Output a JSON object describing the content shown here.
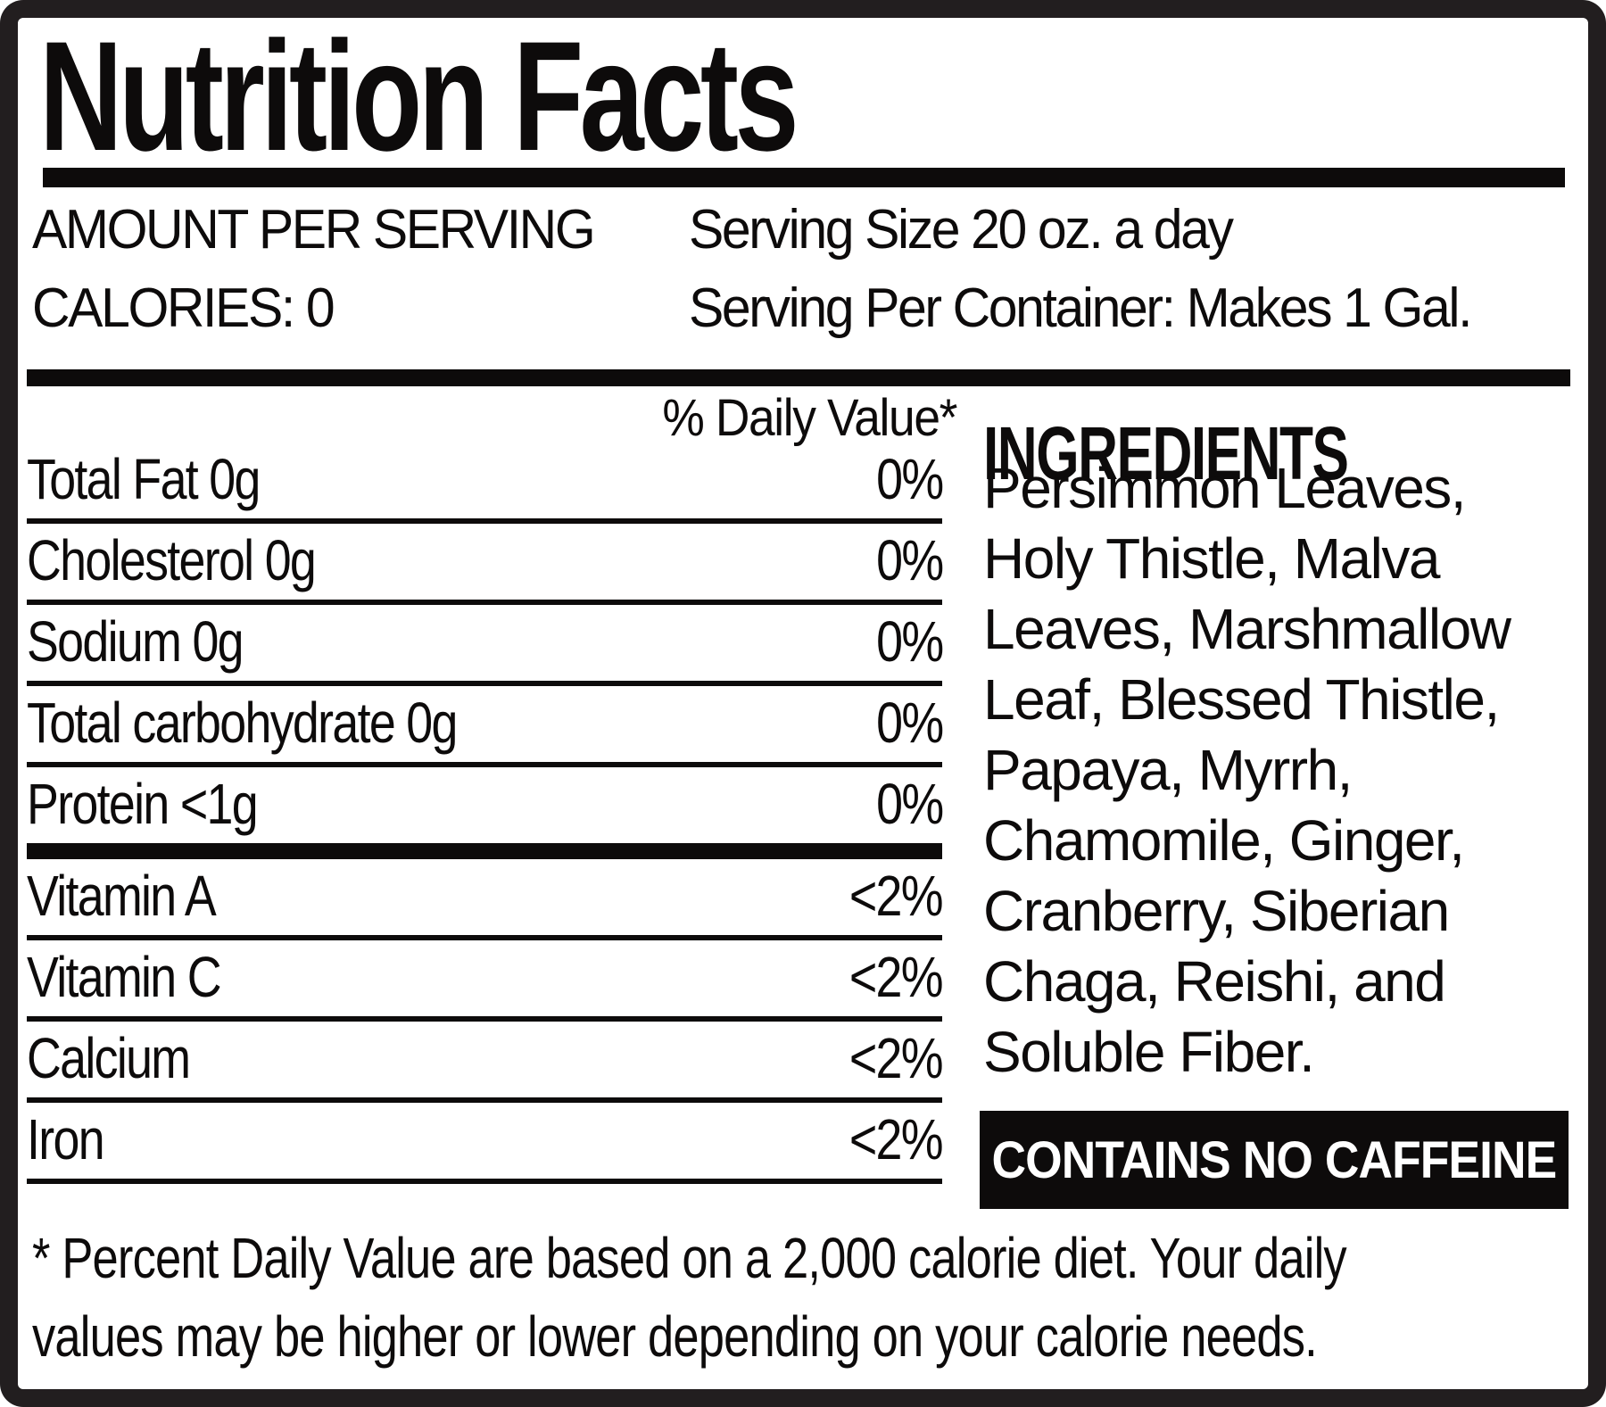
{
  "label": {
    "title": "Nutrition Facts",
    "header": {
      "amount_per_serving": "AMOUNT PER SERVING",
      "calories": "CALORIES: 0",
      "serving_size": "Serving Size 20 oz. a day",
      "servings_per_container": "Serving Per Container: Makes 1 Gal."
    },
    "daily_value_header": "% Daily Value*",
    "nutrients": {
      "macro": [
        {
          "name": "Total Fat 0g",
          "value": "0%"
        },
        {
          "name": "Cholesterol 0g",
          "value": "0%"
        },
        {
          "name": "Sodium 0g",
          "value": "0%"
        },
        {
          "name": "Total carbohydrate 0g",
          "value": "0%"
        },
        {
          "name": "Protein <1g",
          "value": "0%"
        }
      ],
      "vitamins_minerals": [
        {
          "name": "Vitamin A",
          "value": "<2%"
        },
        {
          "name": "Vitamin C",
          "value": "<2%"
        },
        {
          "name": "Calcium",
          "value": "<2%"
        },
        {
          "name": "Iron",
          "value": "<2%"
        }
      ]
    },
    "ingredients": {
      "heading": "INGREDIENTS",
      "text": "Persimmon Leaves,\nHoly Thistle, Malva\nLeaves, Marshmallow\nLeaf, Blessed Thistle,\nPapaya, Myrrh,\nChamomile, Ginger,\nCranberry, Siberian\nChaga, Reishi, and\nSoluble Fiber."
    },
    "caffeine_notice": "CONTAINS NO CAFFEINE",
    "footnote": "* Percent Daily Value are based on a 2,000 calorie diet. Your daily\nvalues may be higher or lower depending on your calorie needs.",
    "colors": {
      "ink": "#0d0b0b",
      "paper": "#ffffff",
      "frame": "#221e1f"
    }
  }
}
